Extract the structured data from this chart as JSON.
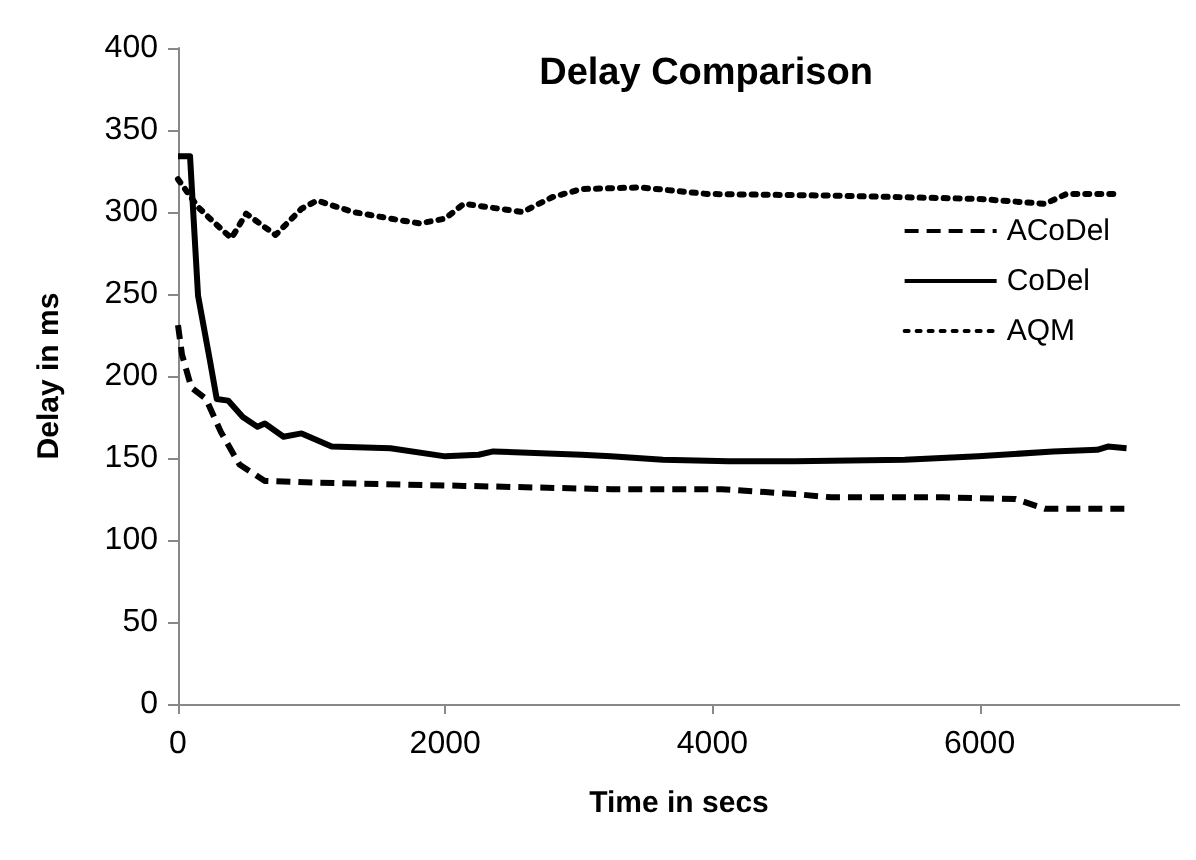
{
  "chart_data": {
    "type": "line",
    "title": "Delay Comparison",
    "xlabel": "Time in secs",
    "ylabel": "Delay in ms",
    "xlim": [
      0,
      7500
    ],
    "xticks": [
      0,
      2000,
      4000,
      6000
    ],
    "ylim": [
      0,
      400
    ],
    "yticks": [
      0,
      50,
      100,
      150,
      200,
      250,
      300,
      350,
      400
    ],
    "grid": false,
    "legend": "top right",
    "marker": "none",
    "series": [
      {
        "name": "ACoDel",
        "color": "#000000",
        "line_style": "dashed",
        "x": [
          0,
          30,
          100,
          210,
          320,
          460,
          650,
          1040,
          2140,
          3240,
          4070,
          4620,
          4890,
          5720,
          6270,
          6490,
          7100
        ],
        "values": [
          231,
          213,
          193,
          186,
          166,
          146,
          136,
          135,
          133,
          131,
          131,
          128,
          126,
          126,
          125,
          119,
          119
        ]
      },
      {
        "name": "CoDel",
        "color": "#000000",
        "line_style": "solid",
        "x": [
          0,
          90,
          150,
          240,
          290,
          375,
          485,
          595,
          650,
          790,
          925,
          1150,
          1590,
          2000,
          2250,
          2360,
          3020,
          3240,
          3630,
          4120,
          4620,
          5440,
          5990,
          6550,
          6880,
          6960,
          7100
        ],
        "values": [
          334,
          334,
          249,
          209,
          186,
          185,
          175,
          169,
          171,
          163,
          165,
          157,
          156,
          151,
          152,
          154,
          152,
          151,
          149,
          148,
          148,
          149,
          151,
          154,
          155,
          157,
          156
        ]
      },
      {
        "name": "AQM",
        "color": "#000000",
        "line_style": "dotted",
        "x": [
          0,
          150,
          265,
          400,
          510,
          730,
          925,
          1040,
          1310,
          1590,
          1810,
          2000,
          2140,
          2580,
          2800,
          3020,
          3460,
          3960,
          4890,
          5990,
          6490,
          6650,
          7040
        ],
        "values": [
          320,
          303,
          294,
          284,
          299,
          286,
          302,
          307,
          300,
          296,
          293,
          296,
          305,
          300,
          309,
          314,
          315,
          311,
          310,
          308,
          305,
          311,
          311
        ]
      }
    ]
  }
}
